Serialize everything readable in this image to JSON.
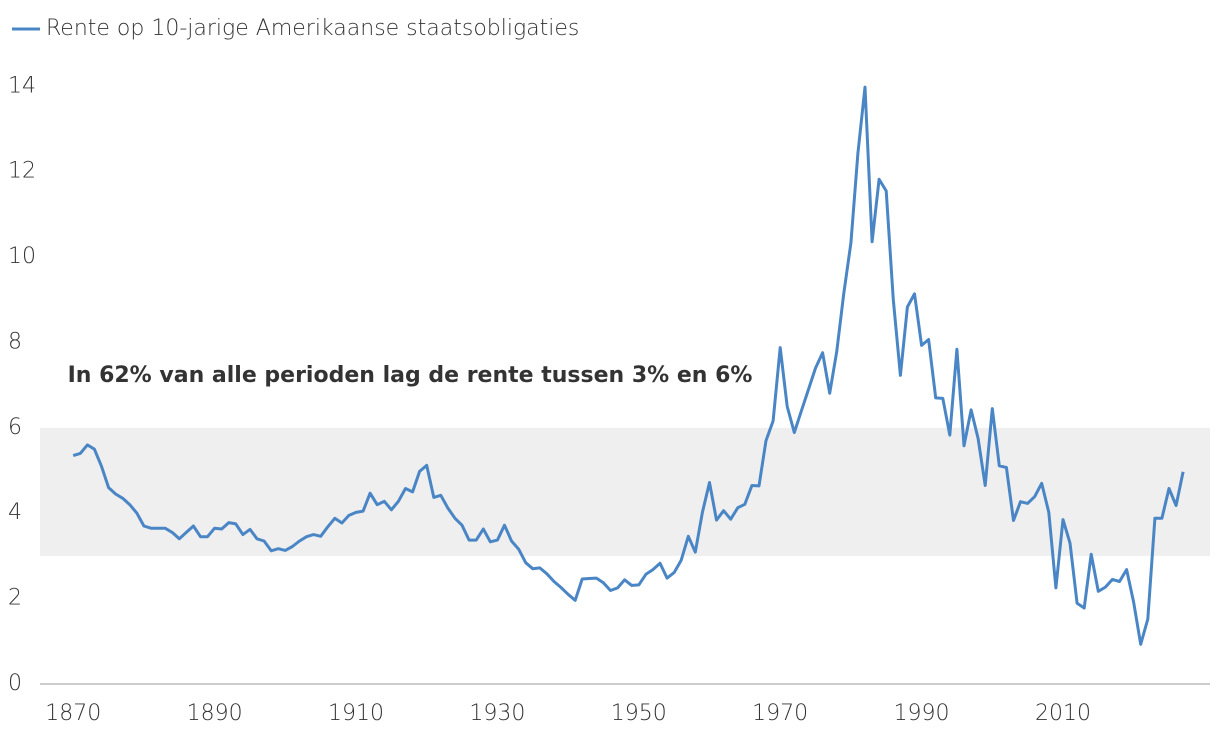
{
  "chart_data": {
    "type": "line",
    "legend": "top-left",
    "annotation": "In 62% van alle perioden lag de rente tussen 3% en 6%",
    "shaded_range": [
      3,
      6
    ],
    "x": [
      1870,
      1871,
      1872,
      1873,
      1874,
      1875,
      1876,
      1877,
      1878,
      1879,
      1880,
      1881,
      1882,
      1883,
      1884,
      1885,
      1886,
      1887,
      1888,
      1889,
      1890,
      1891,
      1892,
      1893,
      1894,
      1895,
      1896,
      1897,
      1898,
      1899,
      1900,
      1901,
      1902,
      1903,
      1904,
      1905,
      1906,
      1907,
      1908,
      1909,
      1910,
      1911,
      1912,
      1913,
      1914,
      1915,
      1916,
      1917,
      1918,
      1919,
      1920,
      1921,
      1922,
      1923,
      1924,
      1925,
      1926,
      1927,
      1928,
      1929,
      1930,
      1931,
      1932,
      1933,
      1934,
      1935,
      1936,
      1937,
      1938,
      1939,
      1940,
      1941,
      1942,
      1943,
      1944,
      1945,
      1946,
      1947,
      1948,
      1949,
      1950,
      1951,
      1952,
      1953,
      1954,
      1955,
      1956,
      1957,
      1958,
      1959,
      1960,
      1961,
      1962,
      1963,
      1964,
      1965,
      1966,
      1967,
      1968,
      1969,
      1970,
      1971,
      1972,
      1973,
      1974,
      1975,
      1976,
      1977,
      1978,
      1979,
      1980,
      1981,
      1982,
      1983,
      1984,
      1985,
      1986,
      1987,
      1988,
      1989,
      1990,
      1991,
      1992,
      1993,
      1994,
      1995,
      1996,
      1997,
      1998,
      1999,
      2000,
      2001,
      2002,
      2003,
      2004,
      2005,
      2006,
      2007,
      2008,
      2009,
      2010,
      2011,
      2012,
      2013,
      2014,
      2015,
      2016,
      2017,
      2018,
      2019,
      2020,
      2021,
      2022,
      2023,
      2024,
      2025,
      2026,
      2027
    ],
    "series": [
      {
        "name": "Rente op 10-jarige Amerikaanse staatsobligaties",
        "color": "#4a86c5",
        "values": [
          5.35,
          5.4,
          5.6,
          5.5,
          5.1,
          4.6,
          4.45,
          4.35,
          4.2,
          4.0,
          3.7,
          3.65,
          3.65,
          3.65,
          3.55,
          3.4,
          3.55,
          3.7,
          3.45,
          3.45,
          3.65,
          3.63,
          3.78,
          3.75,
          3.5,
          3.62,
          3.4,
          3.35,
          3.12,
          3.17,
          3.13,
          3.22,
          3.35,
          3.45,
          3.5,
          3.46,
          3.68,
          3.88,
          3.77,
          3.95,
          4.02,
          4.05,
          4.47,
          4.2,
          4.28,
          4.08,
          4.28,
          4.58,
          4.5,
          4.98,
          5.12,
          4.37,
          4.42,
          4.12,
          3.88,
          3.72,
          3.37,
          3.37,
          3.63,
          3.33,
          3.37,
          3.72,
          3.35,
          3.16,
          2.84,
          2.7,
          2.72,
          2.58,
          2.4,
          2.26,
          2.1,
          1.96,
          2.46,
          2.47,
          2.48,
          2.37,
          2.19,
          2.25,
          2.44,
          2.31,
          2.32,
          2.57,
          2.68,
          2.83,
          2.48,
          2.61,
          2.9,
          3.46,
          3.09,
          4.02,
          4.72,
          3.84,
          4.06,
          3.86,
          4.13,
          4.21,
          4.65,
          4.64,
          5.7,
          6.16,
          7.88,
          6.5,
          5.89,
          6.4,
          6.9,
          7.4,
          7.76,
          6.81,
          7.78,
          9.15,
          10.33,
          12.43,
          13.98,
          10.36,
          11.82,
          11.55,
          9.0,
          7.23,
          8.83,
          9.14,
          7.93,
          8.07,
          6.7,
          6.69,
          5.83,
          7.84,
          5.58,
          6.42,
          5.75,
          4.65,
          6.45,
          5.11,
          5.07,
          3.83,
          4.27,
          4.23,
          4.39,
          4.7,
          4.02,
          2.25,
          3.85,
          3.3,
          1.89,
          1.78,
          3.04,
          2.17,
          2.27,
          2.45,
          2.4,
          2.68,
          1.92,
          0.93,
          1.52,
          3.88,
          3.88,
          4.58,
          4.18,
          4.97
        ]
      }
    ],
    "xlim": [
      1865.3,
      2030.8
    ],
    "xticks": [
      1870,
      1890,
      1910,
      1930,
      1950,
      1970,
      1990,
      2010
    ],
    "ylim": [
      0,
      14.1
    ],
    "yticks": [
      0,
      2,
      4,
      6,
      8,
      10,
      12,
      14
    ],
    "grid": false
  }
}
